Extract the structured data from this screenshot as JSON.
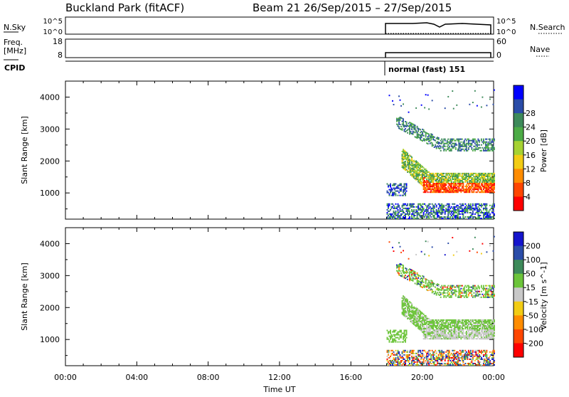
{
  "header": {
    "station": "Buckland Park (fitACF)",
    "beam_info": "Beam 21  26/Sep/2015 – 27/Sep/2015"
  },
  "summary_panels": {
    "nsky": {
      "label": "N.Sky",
      "ticks": [
        "10^5",
        "10^0"
      ],
      "right_label": "N.Search",
      "right_ticks": [
        "10^5",
        "10^0"
      ]
    },
    "freq": {
      "label_line1": "Freq.",
      "label_line2": "[MHz]",
      "ticks": [
        "18",
        "8"
      ],
      "right_label": "Nave",
      "right_ticks": [
        "60",
        "0"
      ]
    },
    "cpid": {
      "label": "CPID",
      "mode_text": "normal (fast) 151"
    }
  },
  "chart_data": [
    {
      "type": "heatmap",
      "name": "power",
      "xlabel": "",
      "ylabel": "Slant Range [km]",
      "yticks": [
        1000,
        2000,
        3000,
        4000
      ],
      "ylim": [
        180,
        4500
      ],
      "colorbar": {
        "label": "Power [dB]",
        "ticks": [
          "4",
          "8",
          "12",
          "16",
          "20",
          "24",
          "28"
        ],
        "colors": [
          "#0000ff",
          "#2a4ca8",
          "#3d8a5a",
          "#4cab46",
          "#a6d232",
          "#f2cc14",
          "#ff8c00",
          "#ff4600",
          "#ff0000"
        ]
      }
    },
    {
      "type": "heatmap",
      "name": "velocity",
      "xlabel": "Time UT",
      "ylabel": "Slant Range [km]",
      "yticks": [
        1000,
        2000,
        3000,
        4000
      ],
      "ylim": [
        180,
        4500
      ],
      "xticks": [
        "00:00",
        "04:00",
        "08:00",
        "12:00",
        "16:00",
        "20:00",
        "00:00"
      ],
      "colorbar": {
        "label": "Velocity [m s^-1]",
        "ticks": [
          "200",
          "100",
          "50",
          "15",
          "-15",
          "-50",
          "-100",
          "-200"
        ],
        "colors": [
          "#1414cc",
          "#2a4ca8",
          "#3d8a5a",
          "#6cc43a",
          "#c8c8c8",
          "#f2cc14",
          "#ff8c00",
          "#ff4600",
          "#ff0000"
        ]
      }
    }
  ]
}
